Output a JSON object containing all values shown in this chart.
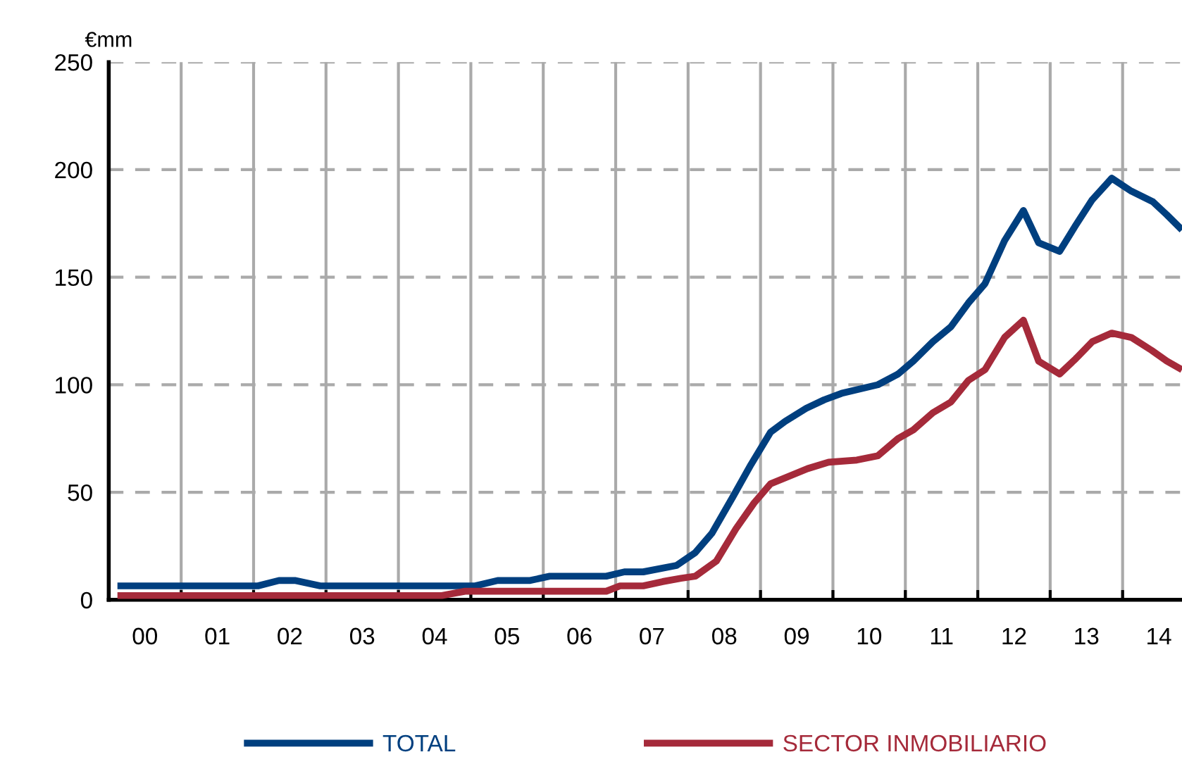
{
  "chart_data": {
    "type": "line",
    "ylabel": "€mm",
    "xlim": [
      -0.5,
      14.32
    ],
    "ylim": [
      0,
      250
    ],
    "yticks": [
      0,
      50,
      100,
      150,
      200,
      250
    ],
    "xticks": [
      {
        "value": 0.5,
        "label": null
      },
      {
        "value": 1.5,
        "label": null
      },
      {
        "value": 2.5,
        "label": null
      },
      {
        "value": 3.5,
        "label": null
      },
      {
        "value": 4.5,
        "label": null
      },
      {
        "value": 5.5,
        "label": null
      },
      {
        "value": 6.5,
        "label": null
      },
      {
        "value": 7.5,
        "label": null
      },
      {
        "value": 8.5,
        "label": null
      },
      {
        "value": 9.5,
        "label": null
      },
      {
        "value": 10.5,
        "label": null
      },
      {
        "value": 11.5,
        "label": null
      },
      {
        "value": 12.5,
        "label": null
      },
      {
        "value": 13.5,
        "label": null
      },
      {
        "value": 0,
        "label": "00"
      },
      {
        "value": 1,
        "label": "01"
      },
      {
        "value": 2,
        "label": "02"
      },
      {
        "value": 3,
        "label": "03"
      },
      {
        "value": 4,
        "label": "04"
      },
      {
        "value": 5,
        "label": "05"
      },
      {
        "value": 6,
        "label": "06"
      },
      {
        "value": 7,
        "label": "07"
      },
      {
        "value": 8,
        "label": "08"
      },
      {
        "value": 9,
        "label": "09"
      },
      {
        "value": 10,
        "label": "10"
      },
      {
        "value": 11,
        "label": "11"
      },
      {
        "value": 12,
        "label": "12"
      },
      {
        "value": 13,
        "label": "13"
      },
      {
        "value": 14,
        "label": "14"
      }
    ],
    "grid": "xy",
    "legend": "bottom",
    "line_style": "solid",
    "marker": "none",
    "series": [
      {
        "name": "TOTAL",
        "color": "#003f7f",
        "x": [
          -0.38,
          1.56,
          1.85,
          2.07,
          2.42,
          4.56,
          4.87,
          5.32,
          5.59,
          6.37,
          6.62,
          6.88,
          7.34,
          7.6,
          7.83,
          8.12,
          8.37,
          8.64,
          8.84,
          9.13,
          9.38,
          9.62,
          10.12,
          10.4,
          10.61,
          10.88,
          11.13,
          11.37,
          11.6,
          11.87,
          12.13,
          12.34,
          12.63,
          12.85,
          13.08,
          13.35,
          13.62,
          13.92,
          14.11,
          14.32
        ],
        "values": [
          6.5,
          6.5,
          9,
          9,
          6.5,
          6.5,
          9,
          9,
          11,
          11,
          13,
          13,
          16,
          22,
          31,
          48,
          63,
          78,
          83,
          89,
          93,
          96,
          100,
          105,
          111,
          120,
          127,
          138,
          147,
          167,
          181,
          166,
          162,
          174,
          186,
          196,
          190,
          185,
          179,
          172
        ]
      },
      {
        "name": "SECTOR INMOBILIARIO",
        "color": "#a52a3a",
        "x": [
          -0.38,
          4.1,
          4.42,
          6.37,
          6.56,
          6.88,
          7.15,
          7.4,
          7.6,
          7.89,
          8.16,
          8.41,
          8.64,
          8.86,
          9.15,
          9.44,
          9.83,
          10.12,
          10.4,
          10.61,
          10.88,
          11.13,
          11.37,
          11.6,
          11.87,
          12.13,
          12.34,
          12.63,
          12.85,
          13.08,
          13.35,
          13.62,
          13.9,
          14.11,
          14.32
        ],
        "values": [
          2,
          2,
          4,
          4,
          6.5,
          6.5,
          8.5,
          10,
          11,
          18,
          33,
          45,
          54,
          57,
          61,
          64,
          65,
          67,
          75,
          79,
          87,
          92,
          102,
          107,
          122,
          130,
          111,
          105,
          112,
          120,
          124,
          122,
          116,
          111,
          107
        ]
      }
    ]
  }
}
